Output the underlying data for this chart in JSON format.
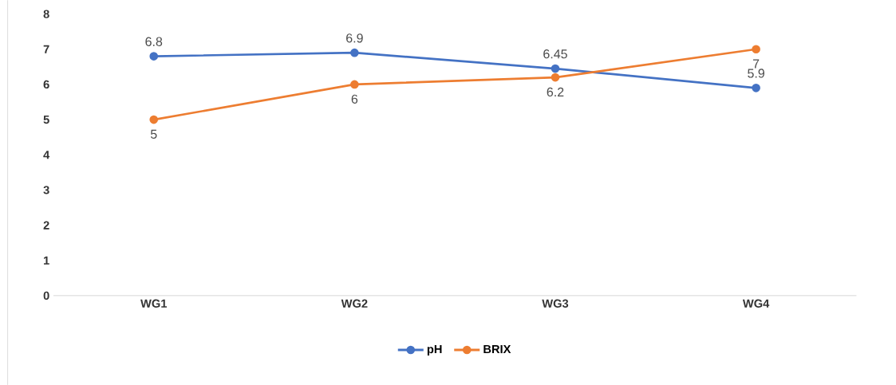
{
  "chart_data": {
    "type": "line",
    "categories": [
      "WG1",
      "WG2",
      "WG3",
      "WG4"
    ],
    "series": [
      {
        "name": "pH",
        "color": "#4472c4",
        "values": [
          6.8,
          6.9,
          6.45,
          5.9
        ]
      },
      {
        "name": "BRIX",
        "color": "#ed7d31",
        "values": [
          5,
          6,
          6.2,
          7
        ]
      }
    ],
    "ylim": [
      0,
      8
    ],
    "yticks": [
      0,
      1,
      2,
      3,
      4,
      5,
      6,
      7,
      8
    ],
    "legend": "bottom",
    "marker": "circle",
    "line_style": "solid",
    "data_labels": true
  }
}
